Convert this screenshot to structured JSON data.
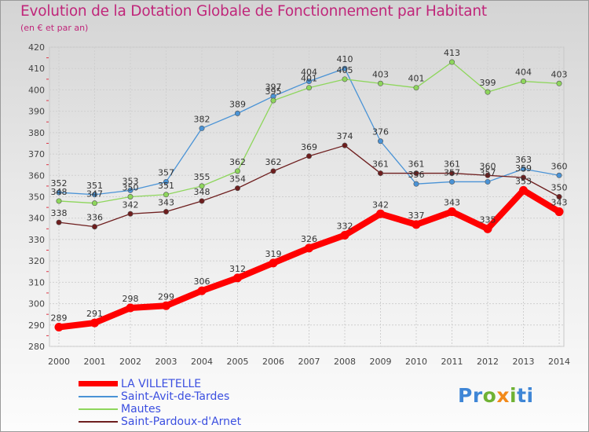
{
  "header": {
    "title": "Evolution de la Dotation Globale de Fonctionnement par Habitant",
    "subtitle": "(en € et par an)"
  },
  "chart_data": {
    "type": "line",
    "title": "Evolution de la Dotation Globale de Fonctionnement par Habitant",
    "subtitle": "(en € et par an)",
    "xlabel": "",
    "ylabel": "",
    "x": [
      "2000",
      "2001",
      "2002",
      "2003",
      "2004",
      "2005",
      "2006",
      "2007",
      "2008",
      "2009",
      "2010",
      "2011",
      "2012",
      "2013",
      "2014"
    ],
    "ylim": [
      280,
      420
    ],
    "yticks": [
      280,
      290,
      300,
      310,
      320,
      330,
      340,
      350,
      360,
      370,
      380,
      390,
      400,
      410,
      420
    ],
    "grid": true,
    "legend_position": "bottom-left",
    "series": [
      {
        "name": "LA VILLETELLE",
        "color": "#ff0000",
        "emphasis": true,
        "values": [
          289,
          291,
          298,
          299,
          306,
          312,
          319,
          326,
          332,
          342,
          337,
          343,
          335,
          353,
          343
        ]
      },
      {
        "name": "Saint-Avit-de-Tardes",
        "color": "#4a93d6",
        "values": [
          352,
          351,
          353,
          357,
          382,
          389,
          397,
          404,
          410,
          376,
          356,
          357,
          357,
          363,
          360
        ]
      },
      {
        "name": "Mautes",
        "color": "#8ed65c",
        "values": [
          348,
          347,
          350,
          351,
          355,
          362,
          395,
          401,
          405,
          403,
          401,
          413,
          399,
          404,
          403
        ]
      },
      {
        "name": "Saint-Pardoux-d'Arnet",
        "color": "#6e1e1e",
        "values": [
          338,
          336,
          342,
          343,
          348,
          354,
          362,
          369,
          374,
          361,
          361,
          361,
          360,
          359,
          350
        ]
      }
    ]
  },
  "legend": {
    "items": [
      {
        "label": "LA VILLETELLE",
        "color": "#ff0000"
      },
      {
        "label": "Saint-Avit-de-Tardes",
        "color": "#4a93d6"
      },
      {
        "label": "Mautes",
        "color": "#8ed65c"
      },
      {
        "label": "Saint-Pardoux-d'Arnet",
        "color": "#6e1e1e"
      }
    ]
  },
  "branding": {
    "logo_parts": [
      "Pr",
      "o",
      "x",
      "i",
      "ti"
    ]
  }
}
